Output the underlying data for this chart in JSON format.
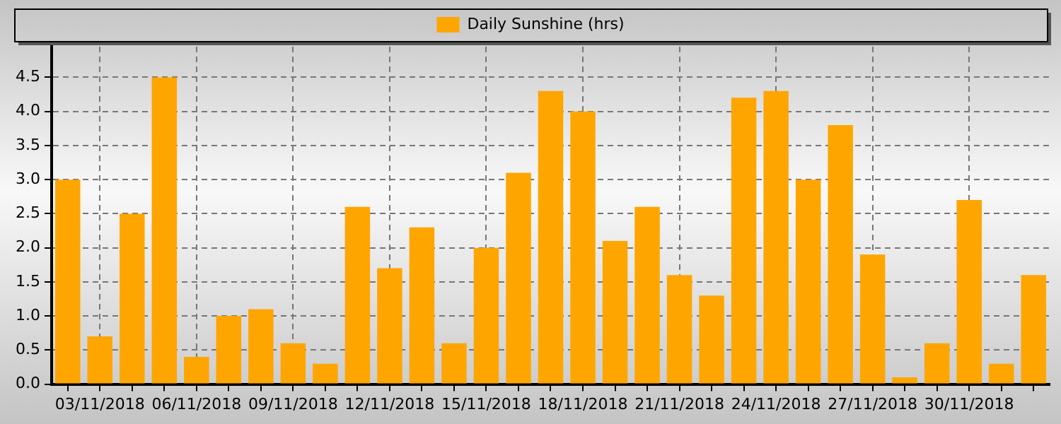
{
  "chart_data": {
    "type": "bar",
    "categories": [
      null,
      "03/11/2018",
      null,
      null,
      "06/11/2018",
      null,
      null,
      "09/11/2018",
      null,
      null,
      "12/11/2018",
      null,
      null,
      "15/11/2018",
      null,
      null,
      "18/11/2018",
      null,
      null,
      "21/11/2018",
      null,
      null,
      "24/11/2018",
      null,
      null,
      "27/11/2018",
      null,
      null,
      "30/11/2018",
      null,
      null
    ],
    "series": [
      {
        "name": "Daily Sunshine (hrs)",
        "color": "#ffa500",
        "values": [
          3.0,
          0.7,
          2.5,
          4.5,
          0.4,
          1.0,
          1.1,
          0.6,
          0.3,
          2.6,
          1.7,
          2.3,
          0.6,
          2.0,
          3.1,
          4.3,
          4.0,
          2.1,
          2.6,
          1.6,
          1.3,
          4.2,
          4.3,
          3.0,
          3.8,
          1.9,
          0.1,
          0.6,
          2.7,
          0.3,
          1.6
        ]
      }
    ],
    "ylim": [
      0,
      4.95
    ],
    "yticks": [
      {
        "value": 0,
        "label": "0.0"
      },
      {
        "value": 0.5,
        "label": "0.5"
      },
      {
        "value": 1,
        "label": "1.0"
      },
      {
        "value": 1.5,
        "label": "1.5"
      },
      {
        "value": 2,
        "label": "2.0"
      },
      {
        "value": 2.5,
        "label": "2.5"
      },
      {
        "value": 3,
        "label": "3.0"
      },
      {
        "value": 3.5,
        "label": "3.5"
      },
      {
        "value": 4,
        "label": "4.0"
      },
      {
        "value": 4.5,
        "label": "4.5"
      }
    ],
    "grid": true,
    "legend": "top"
  }
}
